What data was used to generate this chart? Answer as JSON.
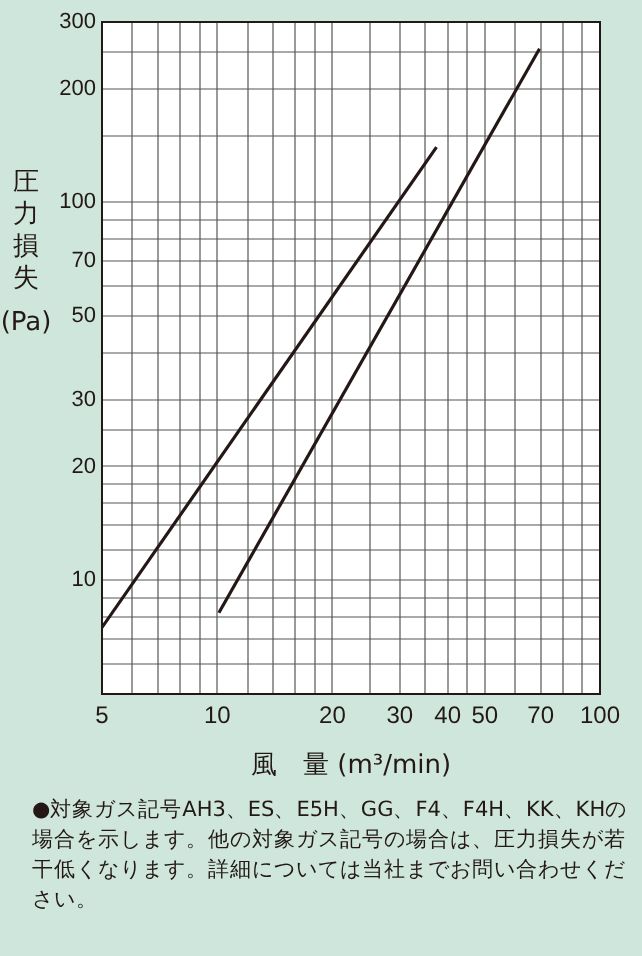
{
  "chart_data": {
    "type": "line",
    "xlabel": "風　量 (m³/min)",
    "ylabel": "圧力損失\n(Pa)",
    "log": "xy",
    "grid": true,
    "marker": "none",
    "line_style": "solid",
    "legend": false,
    "series": [
      {
        "color": "#231815",
        "x": [
          5,
          37.4
        ],
        "values": [
          7.5,
          140
        ]
      },
      {
        "color": "#231815",
        "x": [
          10.1,
          69.5
        ],
        "values": [
          8.2,
          255
        ]
      }
    ],
    "xlim": [
      5,
      100
    ],
    "ylim": [
      5,
      300
    ],
    "xticks": [
      5,
      {
        "value": 6,
        "label": null
      },
      {
        "value": 7,
        "label": null
      },
      {
        "value": 8,
        "label": null
      },
      {
        "value": 9,
        "label": null
      },
      10,
      {
        "value": 12,
        "label": null
      },
      {
        "value": 14,
        "label": null
      },
      {
        "value": 16,
        "label": null
      },
      {
        "value": 18,
        "label": null
      },
      20,
      {
        "value": 25,
        "label": null
      },
      30,
      {
        "value": 35,
        "label": null
      },
      40,
      {
        "value": 45,
        "label": null
      },
      50,
      {
        "value": 60,
        "label": null
      },
      70,
      {
        "value": 80,
        "label": null
      },
      {
        "value": 90,
        "label": null
      },
      100
    ],
    "yticks": [
      {
        "value": 6,
        "label": null
      },
      {
        "value": 7,
        "label": null
      },
      {
        "value": 8,
        "label": null
      },
      {
        "value": 9,
        "label": null
      },
      10,
      {
        "value": 12,
        "label": null
      },
      {
        "value": 14,
        "label": null
      },
      {
        "value": 16,
        "label": null
      },
      {
        "value": 18,
        "label": null
      },
      20,
      {
        "value": 25,
        "label": null
      },
      30,
      {
        "value": 40,
        "label": null
      },
      50,
      {
        "value": 60,
        "label": null
      },
      70,
      {
        "value": 80,
        "label": null
      },
      {
        "value": 90,
        "label": null
      },
      100,
      {
        "value": 150,
        "label": null
      },
      200,
      {
        "value": 250,
        "label": null
      },
      300
    ],
    "annotations": [
      "●対象ガス記号AH3、ES、E5H、GG、F4、F4H、KK、KHの場合を示します。他の対象ガス記号の場合は、圧力損失が若干低くなります。詳細については当社までお問い合わせください。"
    ]
  }
}
